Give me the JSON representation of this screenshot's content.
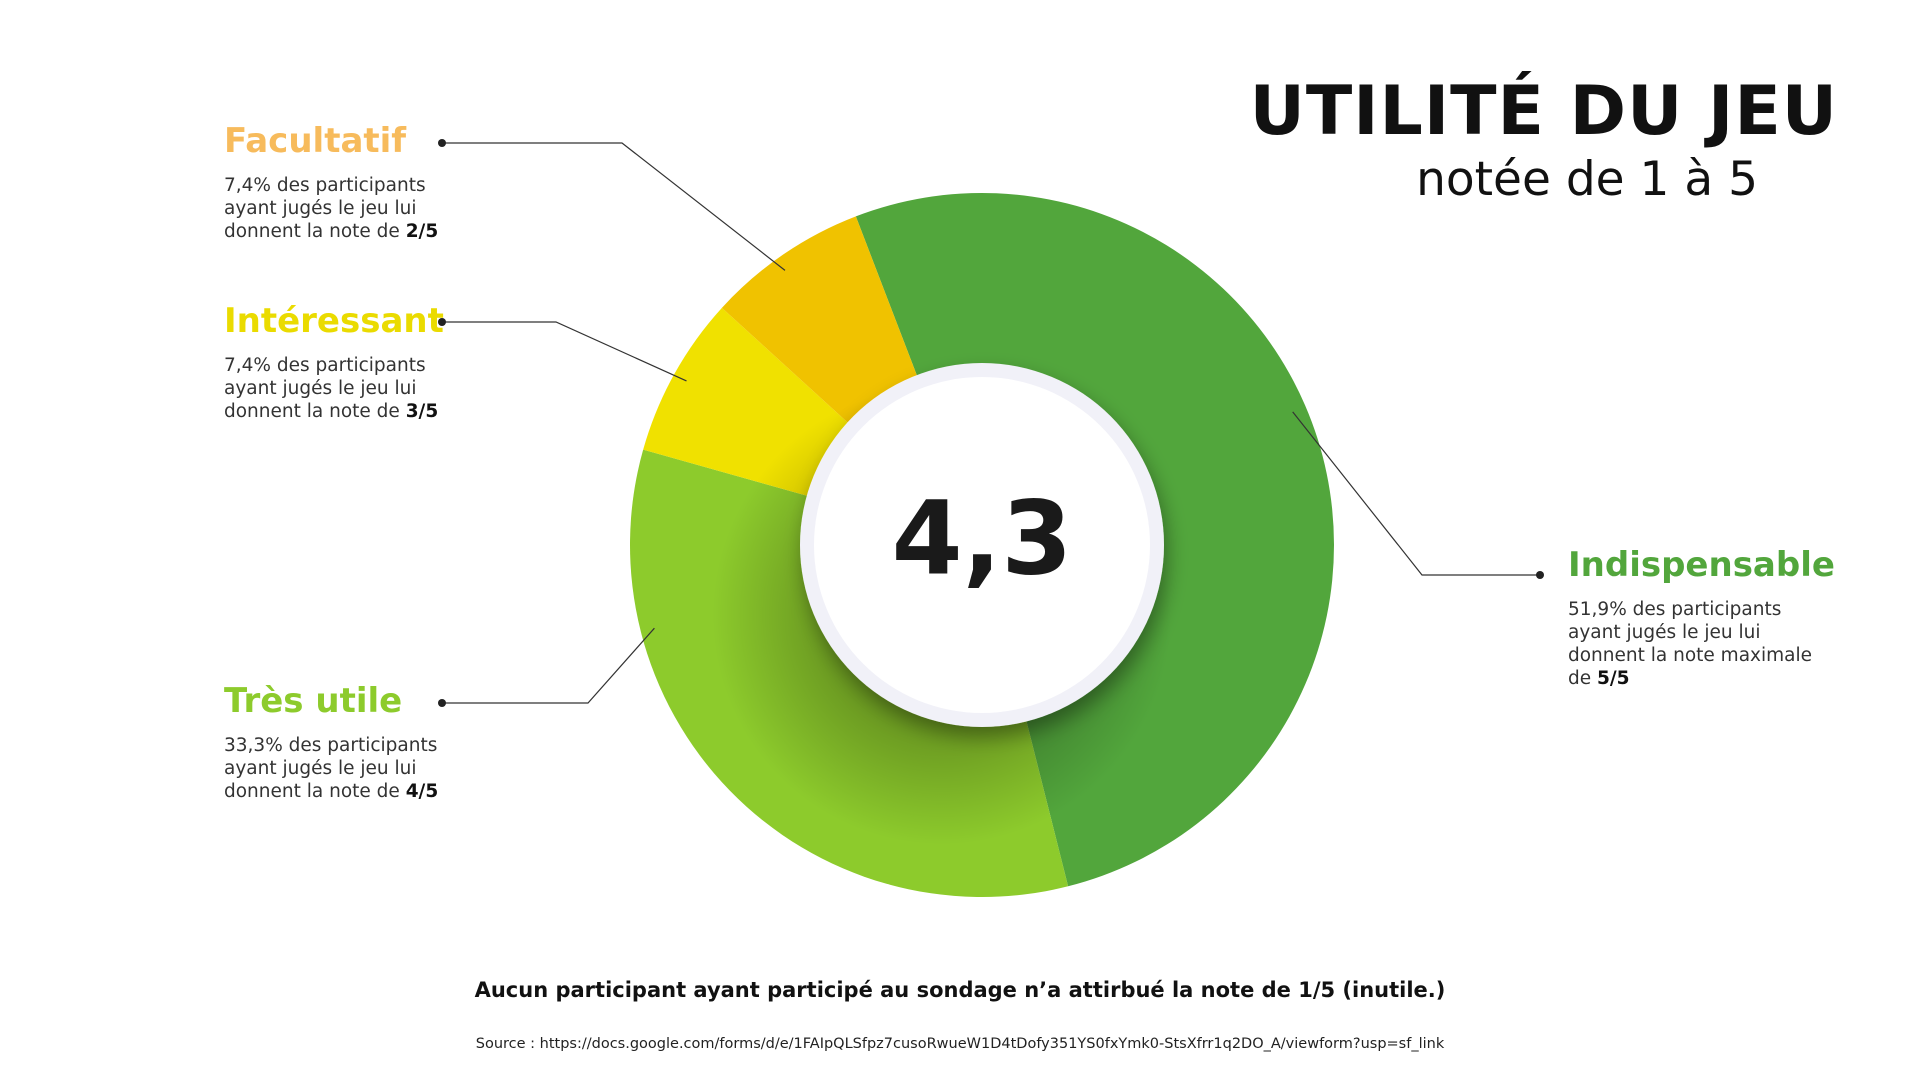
{
  "chart_data": {
    "type": "pie",
    "title": "UTILITÉ DU JEU",
    "subtitle": "notée de 1 à 5",
    "center_value": "4,3",
    "slices": [
      {
        "name": "Indispensable",
        "value": 51.9,
        "color": "#52a63c",
        "text": "51,9% des participants ayant jugés le jeu lui donnent la note maximale de ",
        "score": "5/5"
      },
      {
        "name": "Très utile",
        "value": 33.3,
        "color": "#8dcb2c",
        "text": "33,3% des participants ayant jugés le jeu lui donnent la note de ",
        "score": "4/5"
      },
      {
        "name": "Intéressant",
        "value": 7.4,
        "color": "#f0e100",
        "text": "7,4% des participants ayant jugés le jeu lui donnent la note de ",
        "score": "3/5"
      },
      {
        "name": "Facultatif",
        "value": 7.4,
        "color": "#f0c200",
        "text": "7,4% des participants ayant jugés le jeu lui donnent la note de ",
        "score": "2/5"
      }
    ]
  },
  "label_colors": {
    "Indispensable": "#52a63c",
    "Très utile": "#8dcb2c",
    "Intéressant": "#eadb00",
    "Facultatif": "#f7bb5c"
  },
  "footer": {
    "note": "Aucun participant ayant participé au sondage n’a attirbué la note de 1/5  (inutile.)",
    "source": "Source : https://docs.google.com/forms/d/e/1FAIpQLSfpz7cusoRwueW1D4tDofy351YS0fxYmk0-StsXfrr1q2DO_A/viewform?usp=sf_link"
  }
}
